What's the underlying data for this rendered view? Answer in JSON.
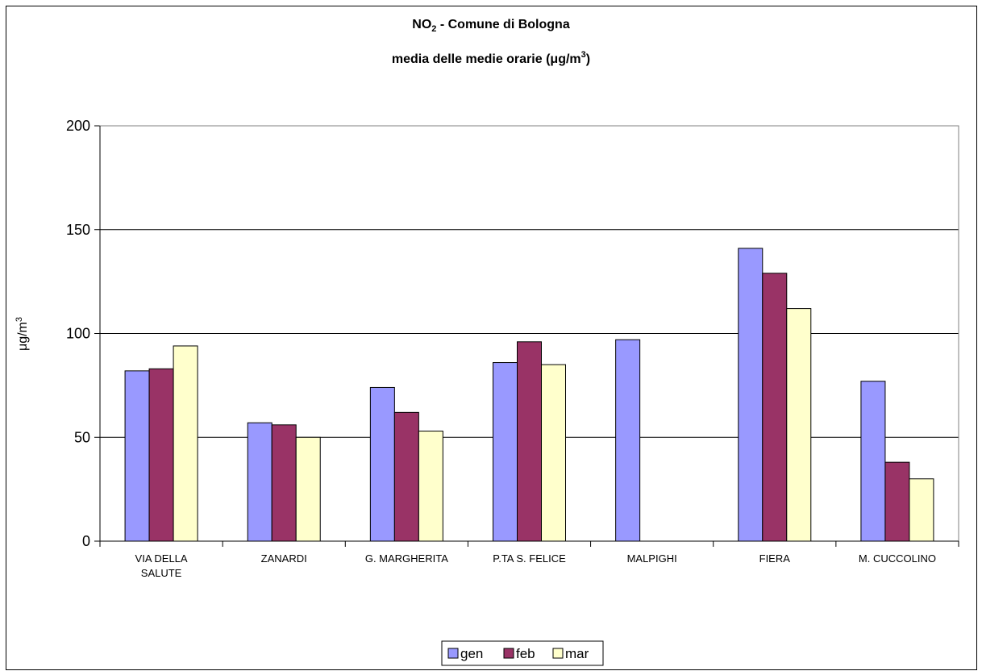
{
  "chart_data": {
    "type": "bar",
    "title_line1_main": "NO",
    "title_line1_sub": "2",
    "title_line1_rest": " - Comune di Bologna",
    "title_line2_main": "media delle medie orarie (",
    "title_line2_mu": "μ",
    "title_line2_unit": "g/m",
    "title_line2_sup": "3",
    "title_line2_close": ")",
    "ylabel_main": "μg/m",
    "ylabel_sup": "3",
    "xlabel": "",
    "ylim": [
      0,
      200
    ],
    "yticks": [
      0,
      50,
      100,
      150,
      200
    ],
    "grid": true,
    "legend_position": "bottom",
    "categories": [
      [
        "VIA DELLA",
        "SALUTE"
      ],
      [
        "ZANARDI"
      ],
      [
        "G. MARGHERITA"
      ],
      [
        "P.TA S. FELICE"
      ],
      [
        "MALPIGHI"
      ],
      [
        "FIERA"
      ],
      [
        "M. CUCCOLINO"
      ]
    ],
    "series": [
      {
        "name": "gen",
        "color": "#9999ff",
        "values": [
          82,
          57,
          74,
          86,
          97,
          141,
          77
        ]
      },
      {
        "name": "feb",
        "color": "#993366",
        "values": [
          83,
          56,
          62,
          96,
          null,
          129,
          38
        ]
      },
      {
        "name": "mar",
        "color": "#ffffcc",
        "values": [
          94,
          50,
          53,
          85,
          null,
          112,
          30
        ]
      }
    ]
  }
}
